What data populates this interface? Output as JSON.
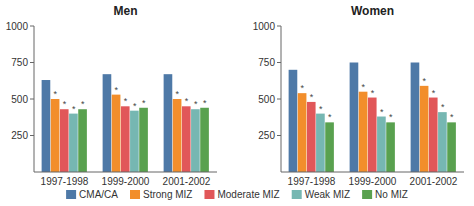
{
  "chart_data": [
    {
      "type": "bar",
      "title": "Men",
      "categories": [
        "1997-1998",
        "1999-2000",
        "2001-2002"
      ],
      "series": [
        {
          "name": "CMA/CA",
          "values": [
            630,
            670,
            670
          ]
        },
        {
          "name": "Strong MIZ",
          "values": [
            500,
            530,
            500
          ]
        },
        {
          "name": "Moderate MIZ",
          "values": [
            430,
            450,
            450
          ]
        },
        {
          "name": "Weak MIZ",
          "values": [
            400,
            420,
            430
          ]
        },
        {
          "name": "No MIZ",
          "values": [
            430,
            440,
            440
          ]
        }
      ],
      "ylim": [
        0,
        1000
      ],
      "yticks": [
        250,
        500,
        750,
        1000
      ],
      "grid": false,
      "legend": "bottom",
      "annotations": [
        {
          "text": "*",
          "series": "Strong MIZ",
          "category": "1997-1998"
        },
        {
          "text": "*",
          "series": "Strong MIZ",
          "category": "1999-2000"
        },
        {
          "text": "*",
          "series": "Strong MIZ",
          "category": "2001-2002"
        },
        {
          "text": "*",
          "series": "Moderate MIZ",
          "category": "1997-1998"
        },
        {
          "text": "*",
          "series": "Moderate MIZ",
          "category": "1999-2000"
        },
        {
          "text": "*",
          "series": "Moderate MIZ",
          "category": "2001-2002"
        },
        {
          "text": "*",
          "series": "Weak MIZ",
          "category": "1997-1998"
        },
        {
          "text": "*",
          "series": "Weak MIZ",
          "category": "1999-2000"
        },
        {
          "text": "*",
          "series": "Weak MIZ",
          "category": "2001-2002"
        },
        {
          "text": "*",
          "series": "No MIZ",
          "category": "1997-1998"
        },
        {
          "text": "*",
          "series": "No MIZ",
          "category": "1999-2000"
        },
        {
          "text": "*",
          "series": "No MIZ",
          "category": "2001-2002"
        }
      ]
    },
    {
      "type": "bar",
      "title": "Women",
      "categories": [
        "1997-1998",
        "1999-2000",
        "2001-2002"
      ],
      "series": [
        {
          "name": "CMA/CA",
          "values": [
            700,
            750,
            750
          ]
        },
        {
          "name": "Strong MIZ",
          "values": [
            540,
            550,
            590
          ]
        },
        {
          "name": "Moderate MIZ",
          "values": [
            480,
            510,
            510
          ]
        },
        {
          "name": "Weak MIZ",
          "values": [
            400,
            380,
            410
          ]
        },
        {
          "name": "No MIZ",
          "values": [
            340,
            340,
            340
          ]
        }
      ],
      "ylim": [
        0,
        1000
      ],
      "yticks": [
        250,
        500,
        750,
        1000
      ],
      "grid": false,
      "annotations": [
        {
          "text": "*",
          "series": "Strong MIZ",
          "category": "1997-1998"
        },
        {
          "text": "*",
          "series": "Strong MIZ",
          "category": "1999-2000"
        },
        {
          "text": "*",
          "series": "Strong MIZ",
          "category": "2001-2002"
        },
        {
          "text": "*",
          "series": "Moderate MIZ",
          "category": "1997-1998"
        },
        {
          "text": "*",
          "series": "Moderate MIZ",
          "category": "1999-2000"
        },
        {
          "text": "*",
          "series": "Moderate MIZ",
          "category": "2001-2002"
        },
        {
          "text": "*",
          "series": "Weak MIZ",
          "category": "1997-1998"
        },
        {
          "text": "*",
          "series": "Weak MIZ",
          "category": "1999-2000"
        },
        {
          "text": "*",
          "series": "Weak MIZ",
          "category": "2001-2002"
        },
        {
          "text": "*",
          "series": "No MIZ",
          "category": "1997-1998"
        },
        {
          "text": "*",
          "series": "No MIZ",
          "category": "1999-2000"
        },
        {
          "text": "*",
          "series": "No MIZ",
          "category": "2001-2002"
        }
      ]
    }
  ]
}
